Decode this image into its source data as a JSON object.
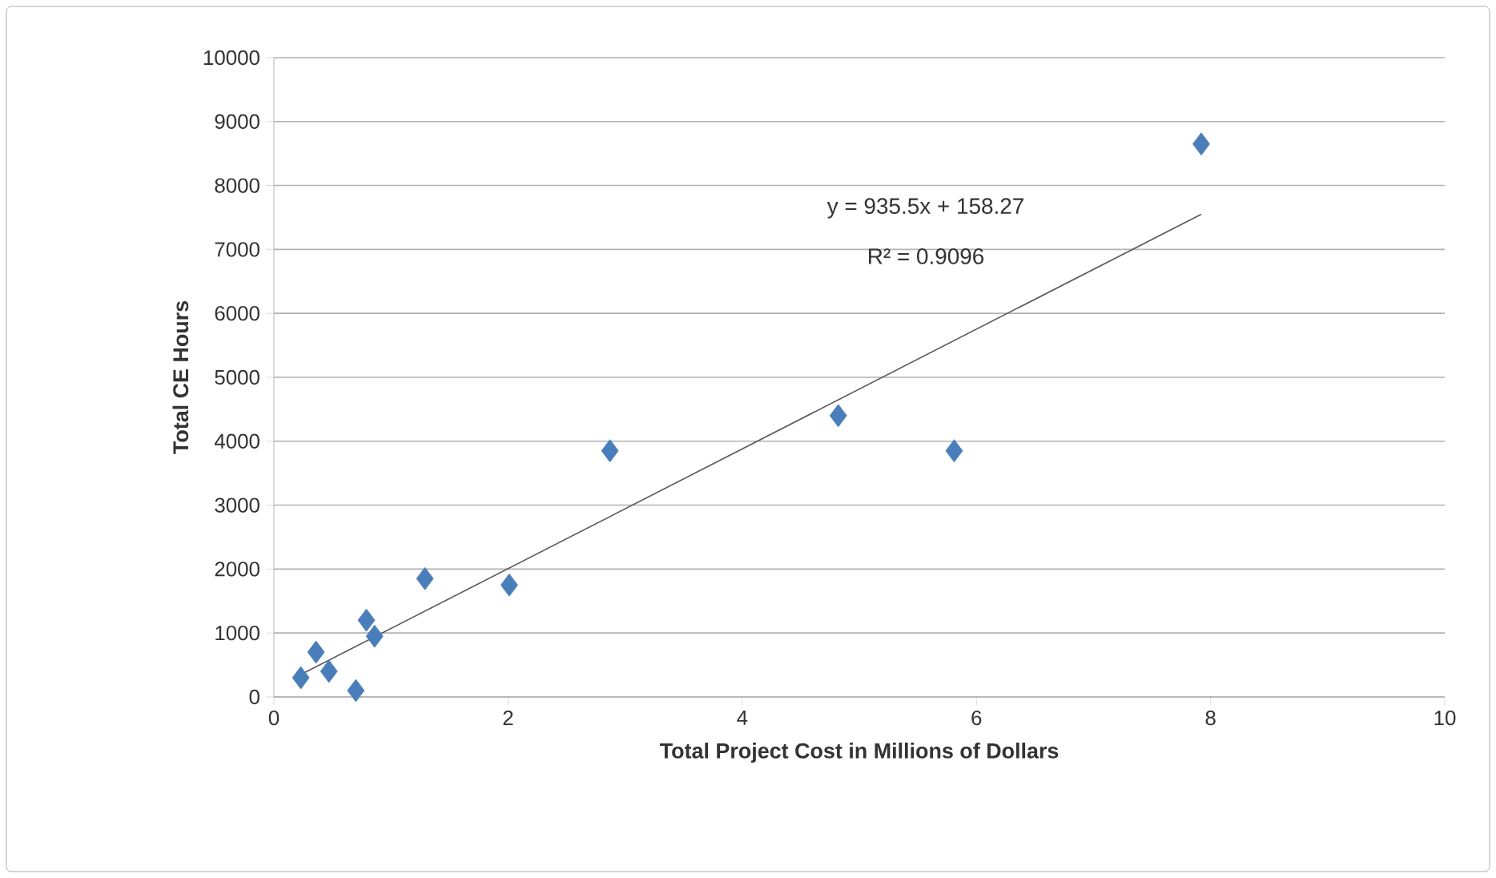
{
  "chart_data": {
    "type": "scatter",
    "xlabel": "Total Project Cost in Millions of Dollars",
    "ylabel": "Total CE Hours",
    "xlim": [
      0,
      10
    ],
    "xticks": [
      0,
      2,
      4,
      6,
      8,
      10
    ],
    "ylim": [
      0,
      10000
    ],
    "yticks": [
      0,
      1000,
      2000,
      3000,
      4000,
      5000,
      6000,
      7000,
      8000,
      9000,
      10000
    ],
    "grid": "y",
    "marker": "diamond",
    "series": [
      {
        "color": "#4a7ebb",
        "x": [
          0.23,
          0.36,
          0.47,
          0.7,
          0.79,
          0.86,
          1.29,
          2.01,
          2.87,
          4.82,
          5.81,
          7.92
        ],
        "values": [
          300,
          700,
          400,
          100,
          1200,
          950,
          1850,
          1750,
          3850,
          4400,
          3850,
          8650
        ]
      },
      {
        "type": "line",
        "color": "#595959",
        "marker": "none",
        "x": [
          0.23,
          7.92
        ],
        "values": [
          350,
          7550
        ]
      }
    ],
    "annotations": [
      "y = 935.5x + 158.27",
      "R² = 0.9096"
    ]
  }
}
